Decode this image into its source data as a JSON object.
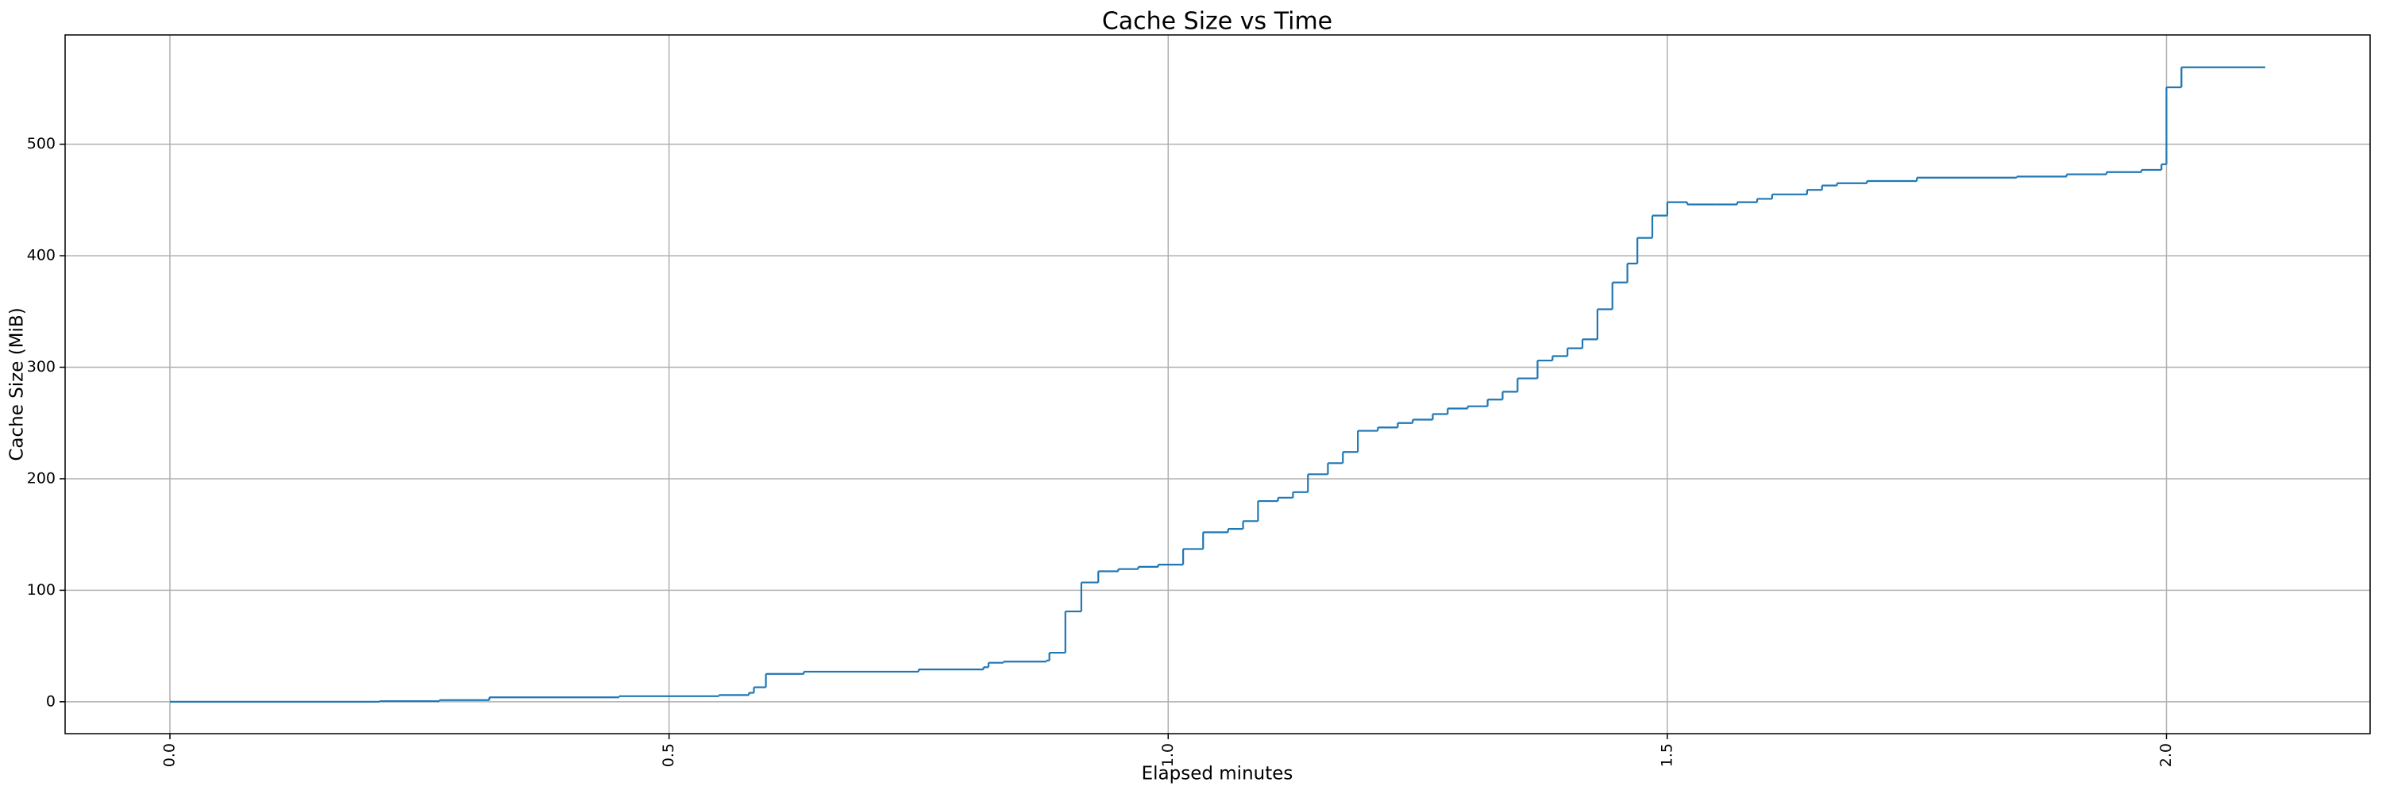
{
  "chart_data": {
    "type": "line",
    "step": "post",
    "title": "Cache Size vs Time",
    "x_label": "Elapsed minutes",
    "y_label": "Cache Size (MiB)",
    "xlim": [
      -0.105,
      2.204
    ],
    "ylim": [
      -28.6,
      598
    ],
    "xticks": [
      {
        "value": 0,
        "label": "0.0"
      },
      0.5,
      {
        "value": 1,
        "label": "1.0"
      },
      1.5,
      {
        "value": 2,
        "label": "2.0"
      }
    ],
    "yticks": [
      0,
      100,
      200,
      300,
      400,
      500
    ],
    "grid": true,
    "series": [
      {
        "color": "#1f77b4",
        "x": [
          0,
          0.21,
          0.27,
          0.32,
          0.45,
          0.55,
          0.58,
          0.585,
          0.597,
          0.635,
          0.75,
          0.815,
          0.82,
          0.835,
          0.878,
          0.881,
          0.897,
          0.913,
          0.93,
          0.95,
          0.97,
          0.99,
          1.015,
          1.035,
          1.06,
          1.075,
          1.09,
          1.11,
          1.125,
          1.14,
          1.16,
          1.175,
          1.19,
          1.21,
          1.23,
          1.245,
          1.265,
          1.28,
          1.3,
          1.32,
          1.335,
          1.35,
          1.37,
          1.385,
          1.4,
          1.415,
          1.43,
          1.445,
          1.46,
          1.47,
          1.485,
          1.5,
          1.52,
          1.55,
          1.57,
          1.59,
          1.605,
          1.64,
          1.655,
          1.67,
          1.7,
          1.75,
          1.85,
          1.9,
          1.94,
          1.975,
          1.995,
          2.0,
          2.015,
          2.099
        ],
        "values": [
          0,
          0.5,
          1.5,
          4,
          5,
          6,
          8,
          13,
          25,
          27,
          29,
          31,
          35,
          36,
          37,
          44,
          81,
          107,
          117,
          119,
          121,
          123,
          137,
          152,
          155,
          162,
          180,
          183,
          188,
          204,
          214,
          224,
          243,
          246,
          250,
          253,
          258,
          263,
          265,
          271,
          278,
          290,
          306,
          310,
          317,
          325,
          352,
          376,
          393,
          416,
          436,
          448,
          446,
          446,
          448,
          451,
          455,
          459,
          463,
          465,
          467,
          470,
          471,
          473,
          475,
          477,
          482,
          551,
          569,
          569
        ]
      }
    ]
  }
}
